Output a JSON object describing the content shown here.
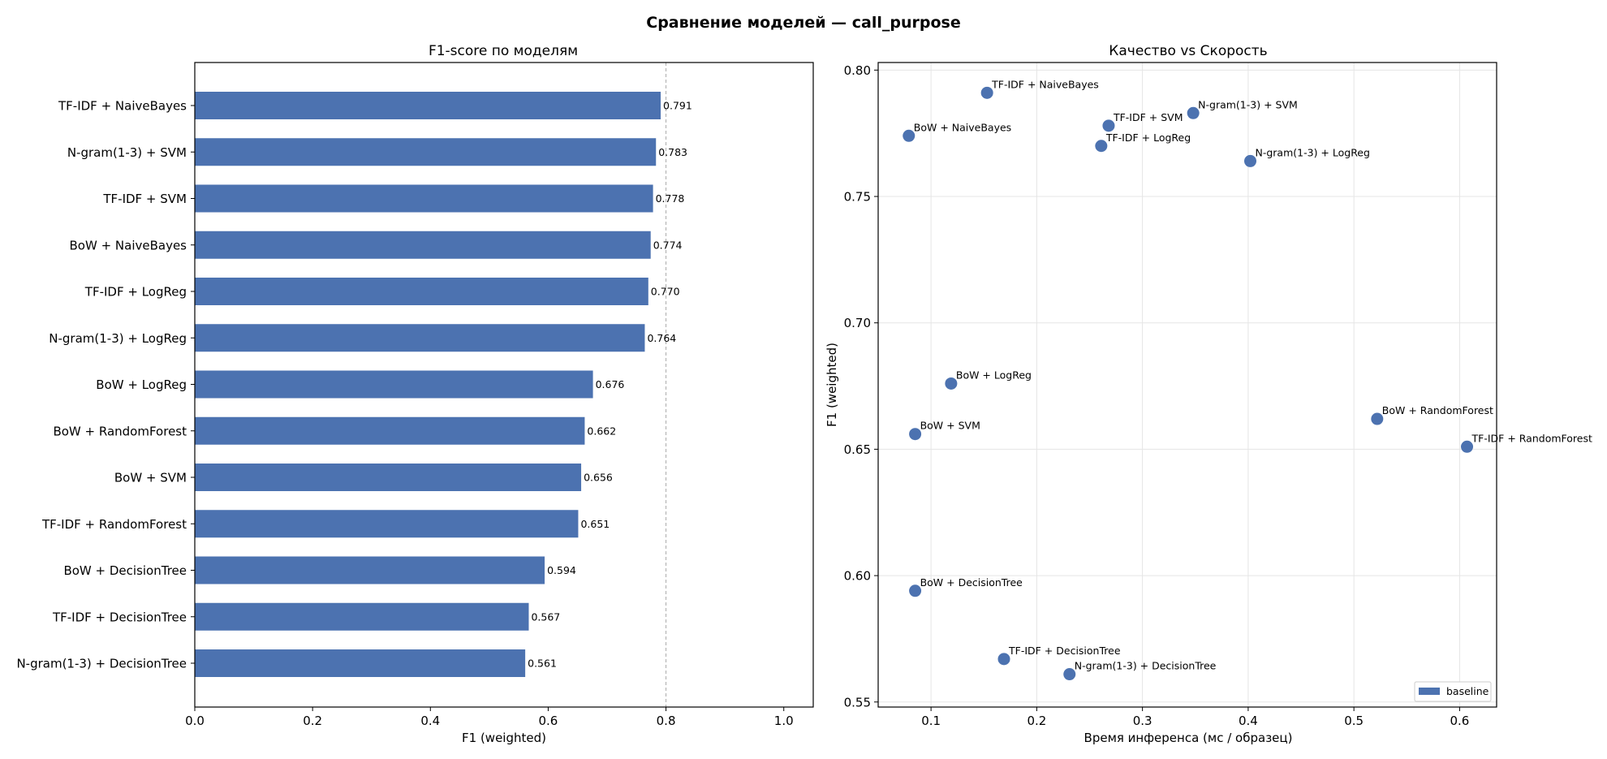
{
  "figure": {
    "title": "Сравнение моделей — call_purpose"
  },
  "colors": {
    "bar": "#4c72b0",
    "point": "#4c72b0",
    "grid": "#e5e5e5",
    "refline": "#aaaaaa"
  },
  "chart_data": [
    {
      "type": "bar",
      "orientation": "horizontal",
      "title": "F1-score по моделям",
      "xlabel": "F1 (weighted)",
      "ylabel": "",
      "xlim": [
        0,
        1.05
      ],
      "xticks": [
        0.0,
        0.2,
        0.4,
        0.6,
        0.8,
        1.0
      ],
      "xtick_labels": [
        "0.0",
        "0.2",
        "0.4",
        "0.6",
        "0.8",
        "1.0"
      ],
      "reference_line_x": 0.8,
      "grid": false,
      "categories": [
        "TF-IDF + NaiveBayes",
        "N-gram(1-3) + SVM",
        "TF-IDF + SVM",
        "BoW + NaiveBayes",
        "TF-IDF + LogReg",
        "N-gram(1-3) + LogReg",
        "BoW + LogReg",
        "BoW + RandomForest",
        "BoW + SVM",
        "TF-IDF + RandomForest",
        "BoW + DecisionTree",
        "TF-IDF + DecisionTree",
        "N-gram(1-3) + DecisionTree"
      ],
      "values": [
        0.791,
        0.783,
        0.778,
        0.774,
        0.77,
        0.764,
        0.676,
        0.662,
        0.656,
        0.651,
        0.594,
        0.567,
        0.561
      ],
      "value_labels": [
        "0.791",
        "0.783",
        "0.778",
        "0.774",
        "0.770",
        "0.764",
        "0.676",
        "0.662",
        "0.656",
        "0.651",
        "0.594",
        "0.567",
        "0.561"
      ]
    },
    {
      "type": "scatter",
      "title": "Качество vs Скорость",
      "xlabel": "Время инференса (мс / образец)",
      "ylabel": "F1 (weighted)",
      "xlim": [
        0.05,
        0.635
      ],
      "ylim": [
        0.548,
        0.803
      ],
      "xticks": [
        0.1,
        0.2,
        0.3,
        0.4,
        0.5,
        0.6
      ],
      "xtick_labels": [
        "0.1",
        "0.2",
        "0.3",
        "0.4",
        "0.5",
        "0.6"
      ],
      "yticks": [
        0.55,
        0.6,
        0.65,
        0.7,
        0.75,
        0.8
      ],
      "ytick_labels": [
        "0.55",
        "0.60",
        "0.65",
        "0.70",
        "0.75",
        "0.80"
      ],
      "grid": true,
      "legend": {
        "entries": [
          "baseline"
        ],
        "placement": "lower-right"
      },
      "series": [
        {
          "name": "baseline",
          "points": [
            {
              "label": "TF-IDF + NaiveBayes",
              "x": 0.153,
              "y": 0.791
            },
            {
              "label": "N-gram(1-3) + SVM",
              "x": 0.348,
              "y": 0.783
            },
            {
              "label": "TF-IDF + SVM",
              "x": 0.268,
              "y": 0.778
            },
            {
              "label": "BoW + NaiveBayes",
              "x": 0.079,
              "y": 0.774
            },
            {
              "label": "TF-IDF + LogReg",
              "x": 0.261,
              "y": 0.77
            },
            {
              "label": "N-gram(1-3) + LogReg",
              "x": 0.402,
              "y": 0.764
            },
            {
              "label": "BoW + LogReg",
              "x": 0.119,
              "y": 0.676
            },
            {
              "label": "BoW + RandomForest",
              "x": 0.522,
              "y": 0.662
            },
            {
              "label": "BoW + SVM",
              "x": 0.085,
              "y": 0.656
            },
            {
              "label": "TF-IDF + RandomForest",
              "x": 0.607,
              "y": 0.651
            },
            {
              "label": "BoW + DecisionTree",
              "x": 0.085,
              "y": 0.594
            },
            {
              "label": "TF-IDF + DecisionTree",
              "x": 0.169,
              "y": 0.567
            },
            {
              "label": "N-gram(1-3) + DecisionTree",
              "x": 0.231,
              "y": 0.561
            }
          ]
        }
      ]
    }
  ]
}
